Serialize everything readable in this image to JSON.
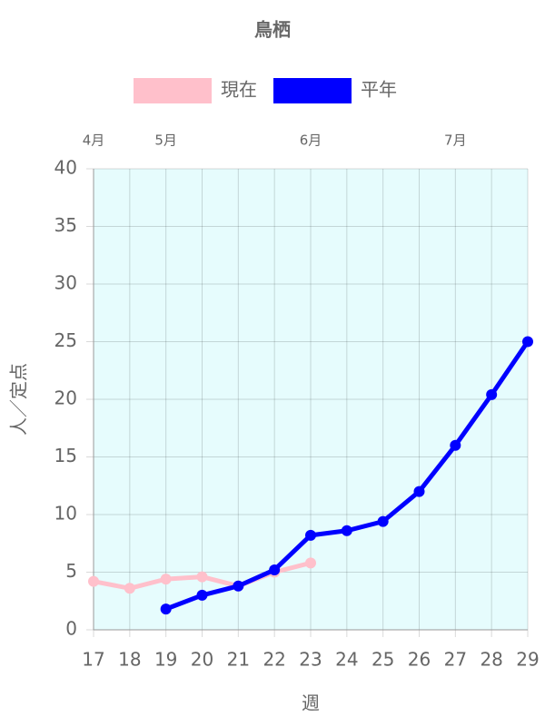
{
  "chart_data": {
    "type": "line",
    "title": "鳥栖",
    "x": [
      17,
      18,
      19,
      20,
      21,
      22,
      23,
      24,
      25,
      26,
      27,
      28,
      29
    ],
    "series": [
      {
        "name": "現在",
        "color": "#ffc0cb",
        "values": [
          4.2,
          3.6,
          4.4,
          4.6,
          3.8,
          5.0,
          5.8,
          null,
          null,
          null,
          null,
          null,
          null
        ]
      },
      {
        "name": "平年",
        "color": "#0000ff",
        "values": [
          null,
          null,
          1.8,
          3.0,
          3.8,
          5.2,
          8.2,
          8.6,
          9.4,
          12.0,
          16.0,
          20.4,
          25.0
        ]
      }
    ],
    "xlim": [
      17,
      29
    ],
    "xticks": [
      17,
      18,
      19,
      20,
      21,
      22,
      23,
      24,
      25,
      26,
      27,
      28,
      29
    ],
    "ylim": [
      0,
      40
    ],
    "yticks": [
      0,
      5,
      10,
      15,
      20,
      25,
      30,
      35,
      40
    ],
    "x_label": "週",
    "y_label": "人／定点",
    "month_labels": [
      {
        "x": 17,
        "label": "4月"
      },
      {
        "x": 19,
        "label": "5月"
      },
      {
        "x": 23,
        "label": "6月"
      },
      {
        "x": 27,
        "label": "7月"
      }
    ],
    "grid": true,
    "background": "#e6fcfd"
  }
}
